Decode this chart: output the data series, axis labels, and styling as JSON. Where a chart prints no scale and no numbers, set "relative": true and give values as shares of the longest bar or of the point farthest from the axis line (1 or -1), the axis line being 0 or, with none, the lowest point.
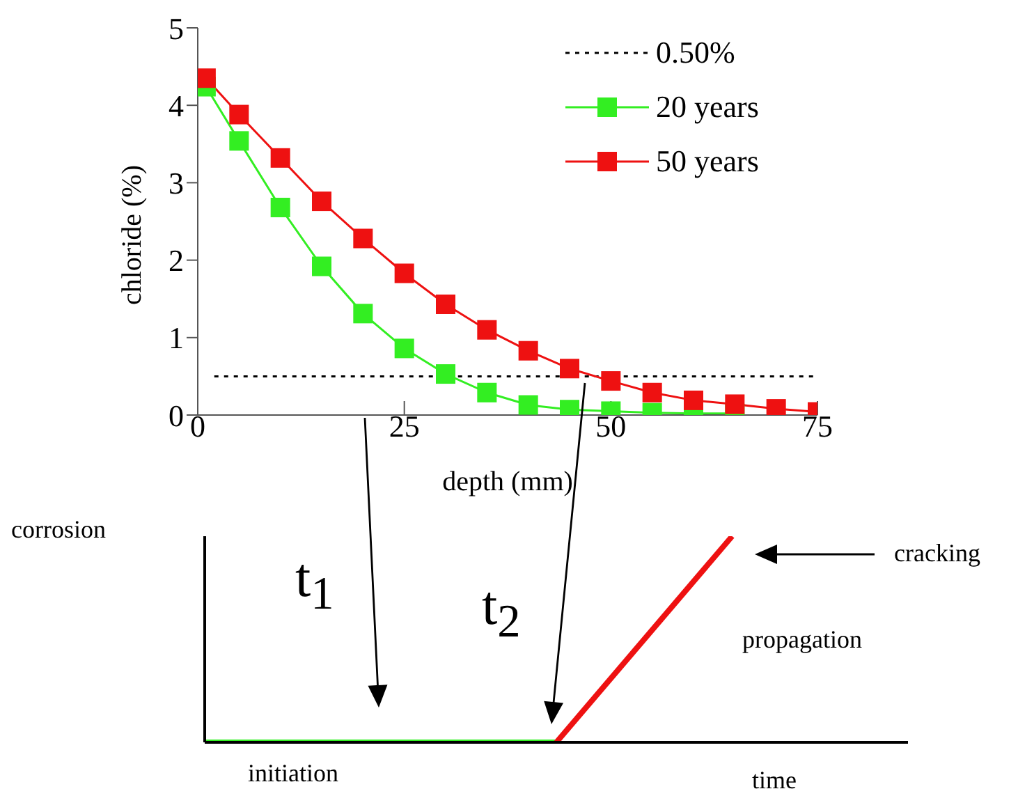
{
  "chart_data": [
    {
      "type": "line",
      "ylabel": "chloride (%)",
      "xlabel": "depth (mm)",
      "xlim": [
        0,
        75
      ],
      "xticks": [
        0,
        25,
        50,
        75
      ],
      "ylim": [
        0,
        5
      ],
      "yticks": [
        0,
        1,
        2,
        3,
        4,
        5
      ],
      "grid": false,
      "legend": "top right",
      "marker": "square",
      "series": [
        {
          "name": "0.50%",
          "color": "#000000",
          "marker": "none",
          "line_style": "dotted",
          "x": [
            2,
            75
          ],
          "values": [
            0.5,
            0.5
          ]
        },
        {
          "name": "20 years",
          "color": "#33ee22",
          "x": [
            1,
            5,
            10,
            15,
            20,
            25,
            30,
            35,
            40,
            45,
            50,
            55,
            60,
            65
          ],
          "values": [
            4.24,
            3.54,
            2.68,
            1.92,
            1.31,
            0.86,
            0.53,
            0.29,
            0.13,
            0.07,
            0.05,
            0.03,
            0.02,
            0.02
          ]
        },
        {
          "name": "50 years",
          "color": "#ee1111",
          "x": [
            1,
            5,
            10,
            15,
            20,
            25,
            30,
            35,
            40,
            45,
            50,
            55,
            60,
            65,
            70,
            75
          ],
          "values": [
            4.35,
            3.88,
            3.32,
            2.76,
            2.28,
            1.83,
            1.43,
            1.1,
            0.83,
            0.6,
            0.44,
            0.29,
            0.19,
            0.14,
            0.08,
            0.04
          ]
        }
      ]
    },
    {
      "type": "line",
      "relative": true,
      "ylabel": "corrosion",
      "xlabel": "time",
      "categories": [
        null,
        null,
        null,
        null,
        null
      ],
      "marker": "none",
      "line_style": "solid",
      "annotations": [
        "t$_{1}$",
        "t$_{2}$",
        "cracking",
        "propagation",
        "initiation"
      ],
      "series": [
        {
          "color": "#33ee22",
          "values": [
            0,
            0,
            0,
            null,
            null
          ]
        },
        {
          "color": "#ee1111",
          "values": [
            null,
            null,
            0,
            1,
            null
          ]
        }
      ]
    }
  ]
}
